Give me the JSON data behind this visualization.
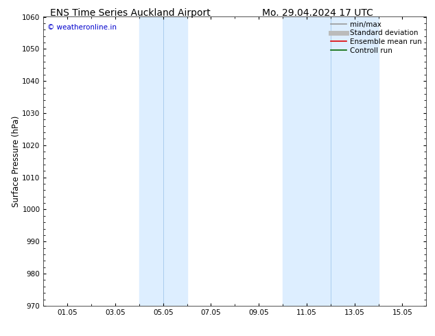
{
  "title_left": "ENS Time Series Auckland Airport",
  "title_right": "Mo. 29.04.2024 17 UTC",
  "ylabel": "Surface Pressure (hPa)",
  "ylim": [
    970,
    1060
  ],
  "yticks": [
    970,
    980,
    990,
    1000,
    1010,
    1020,
    1030,
    1040,
    1050,
    1060
  ],
  "xtick_labels": [
    "01.05",
    "03.05",
    "05.05",
    "07.05",
    "09.05",
    "11.05",
    "13.05",
    "15.05"
  ],
  "xtick_positions": [
    1,
    3,
    5,
    7,
    9,
    11,
    13,
    15
  ],
  "xlim": [
    0,
    16
  ],
  "shaded_bands": [
    {
      "xmin": 4.0,
      "xmax": 6.0,
      "color": "#ddeeff"
    },
    {
      "xmin": 10.0,
      "xmax": 14.0,
      "color": "#ddeeff"
    }
  ],
  "band_dividers": [
    5.0,
    12.0
  ],
  "watermark_text": "© weatheronline.in",
  "watermark_color": "#0000cc",
  "legend_items": [
    {
      "label": "min/max",
      "color": "#999999",
      "lw": 1.2
    },
    {
      "label": "Standard deviation",
      "color": "#bbbbbb",
      "lw": 5
    },
    {
      "label": "Ensemble mean run",
      "color": "#dd0000",
      "lw": 1.2
    },
    {
      "label": "Controll run",
      "color": "#006600",
      "lw": 1.2
    }
  ],
  "background_color": "#ffffff",
  "title_fontsize": 10,
  "tick_fontsize": 7.5,
  "ylabel_fontsize": 8.5,
  "watermark_fontsize": 7.5,
  "legend_fontsize": 7.5
}
